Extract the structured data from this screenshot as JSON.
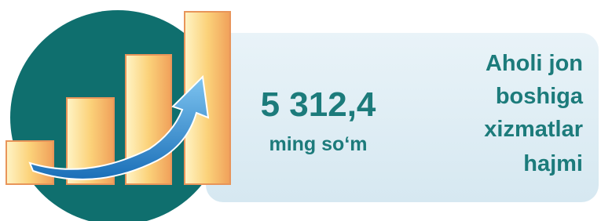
{
  "value": "5 312,4",
  "unit": "ming so‘m",
  "label": [
    "Aholi jon",
    "boshiga",
    "xizmatlar",
    "hajmi"
  ]
}
